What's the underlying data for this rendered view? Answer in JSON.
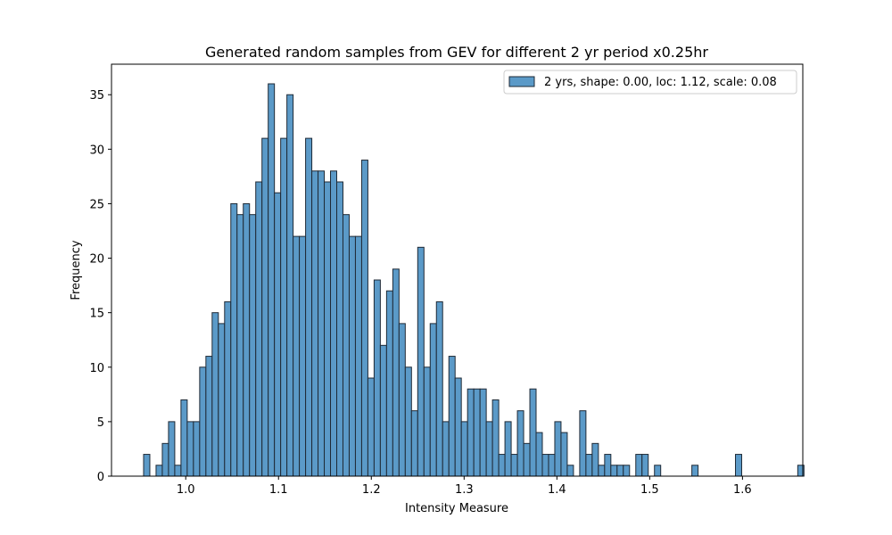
{
  "chart_data": {
    "type": "bar",
    "title": "Generated random samples from GEV for different 2 yr period x0.25hr",
    "xlabel": "Intensity Measure",
    "ylabel": "Frequency",
    "xlim": [
      0.92,
      1.665
    ],
    "ylim": [
      0,
      37.8
    ],
    "x_ticks": [
      1.0,
      1.1,
      1.2,
      1.3,
      1.4,
      1.5,
      1.6
    ],
    "x_tick_labels": [
      "1.0",
      "1.1",
      "1.2",
      "1.3",
      "1.4",
      "1.5",
      "1.6"
    ],
    "y_ticks": [
      0,
      5,
      10,
      15,
      20,
      25,
      30,
      35
    ],
    "y_tick_labels": [
      "0",
      "5",
      "10",
      "15",
      "20",
      "25",
      "30",
      "35"
    ],
    "bin_start": 0.9546,
    "bin_width": 0.006714,
    "series": [
      {
        "name": "2 yrs, shape: 0.00, loc: 1.12, scale: 0.08",
        "color": "#5b9ac8",
        "edge_color": "#1f2a36",
        "values": [
          2,
          0,
          1,
          3,
          5,
          1,
          7,
          5,
          5,
          10,
          11,
          15,
          14,
          16,
          25,
          24,
          25,
          24,
          27,
          31,
          36,
          26,
          31,
          35,
          22,
          22,
          31,
          28,
          28,
          27,
          28,
          27,
          24,
          22,
          22,
          29,
          9,
          18,
          12,
          17,
          19,
          14,
          10,
          6,
          21,
          10,
          14,
          16,
          5,
          11,
          9,
          5,
          8,
          8,
          8,
          5,
          7,
          2,
          5,
          2,
          6,
          3,
          8,
          4,
          2,
          2,
          5,
          4,
          1,
          0,
          6,
          2,
          3,
          1,
          2,
          1,
          1,
          1,
          0,
          2,
          2,
          0,
          1,
          0,
          0,
          0,
          0,
          0,
          1,
          0,
          0,
          0,
          0,
          0,
          0,
          2,
          0,
          0,
          0,
          0,
          0,
          0,
          0,
          0,
          0,
          1
        ]
      }
    ],
    "legend": {
      "position": "top-right",
      "entries": [
        "2 yrs, shape: 0.00, loc: 1.12, scale: 0.08"
      ]
    }
  }
}
